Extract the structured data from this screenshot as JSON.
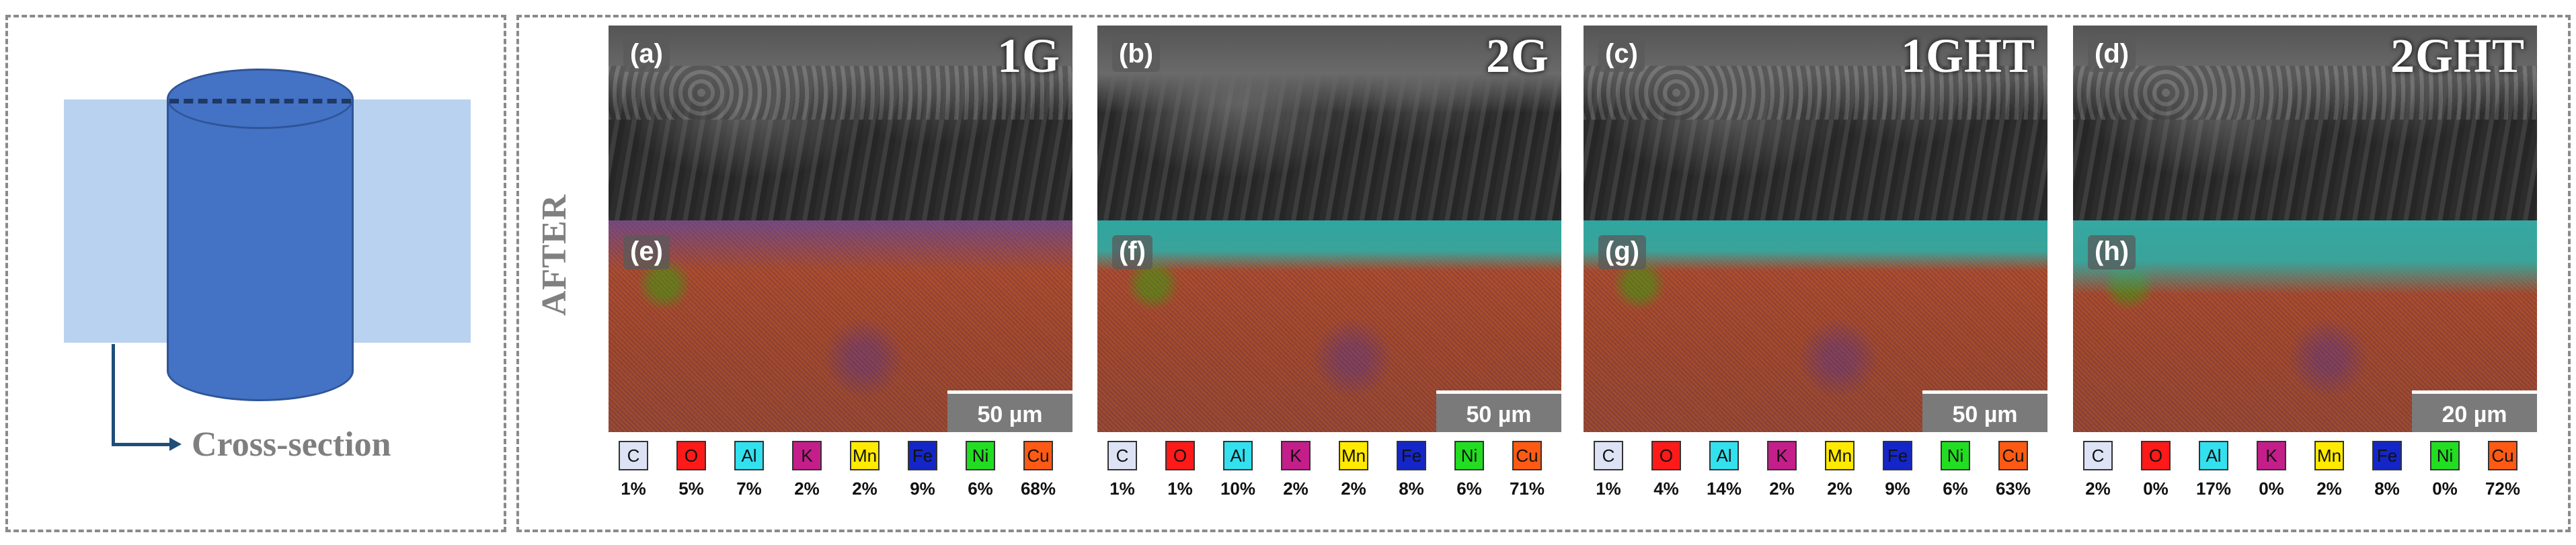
{
  "schematic": {
    "label": "Cross-section"
  },
  "side_label": "AFTER",
  "elements": [
    {
      "symbol": "C",
      "color": "#dde3f4"
    },
    {
      "symbol": "O",
      "color": "#ff1a1a"
    },
    {
      "symbol": "Al",
      "color": "#33e0ee"
    },
    {
      "symbol": "K",
      "color": "#c41e8a"
    },
    {
      "symbol": "Mn",
      "color": "#ffea00"
    },
    {
      "symbol": "Fe",
      "color": "#1426c8"
    },
    {
      "symbol": "Ni",
      "color": "#22dd22"
    },
    {
      "symbol": "Cu",
      "color": "#ff5a14"
    }
  ],
  "panels": [
    {
      "sample": "1G",
      "sem_tag": "(a)",
      "eds_tag": "(e)",
      "scale": "50 µm",
      "pct": [
        "1%",
        "5%",
        "7%",
        "2%",
        "2%",
        "9%",
        "6%",
        "68%"
      ]
    },
    {
      "sample": "2G",
      "sem_tag": "(b)",
      "eds_tag": "(f)",
      "scale": "50 µm",
      "pct": [
        "1%",
        "1%",
        "10%",
        "2%",
        "2%",
        "8%",
        "6%",
        "71%"
      ]
    },
    {
      "sample": "1GHT",
      "sem_tag": "(c)",
      "eds_tag": "(g)",
      "scale": "50 µm",
      "pct": [
        "1%",
        "4%",
        "14%",
        "2%",
        "2%",
        "9%",
        "6%",
        "63%"
      ]
    },
    {
      "sample": "2GHT",
      "sem_tag": "(d)",
      "eds_tag": "(h)",
      "scale": "20 µm",
      "pct": [
        "2%",
        "0%",
        "17%",
        "0%",
        "2%",
        "8%",
        "0%",
        "72%"
      ]
    }
  ]
}
